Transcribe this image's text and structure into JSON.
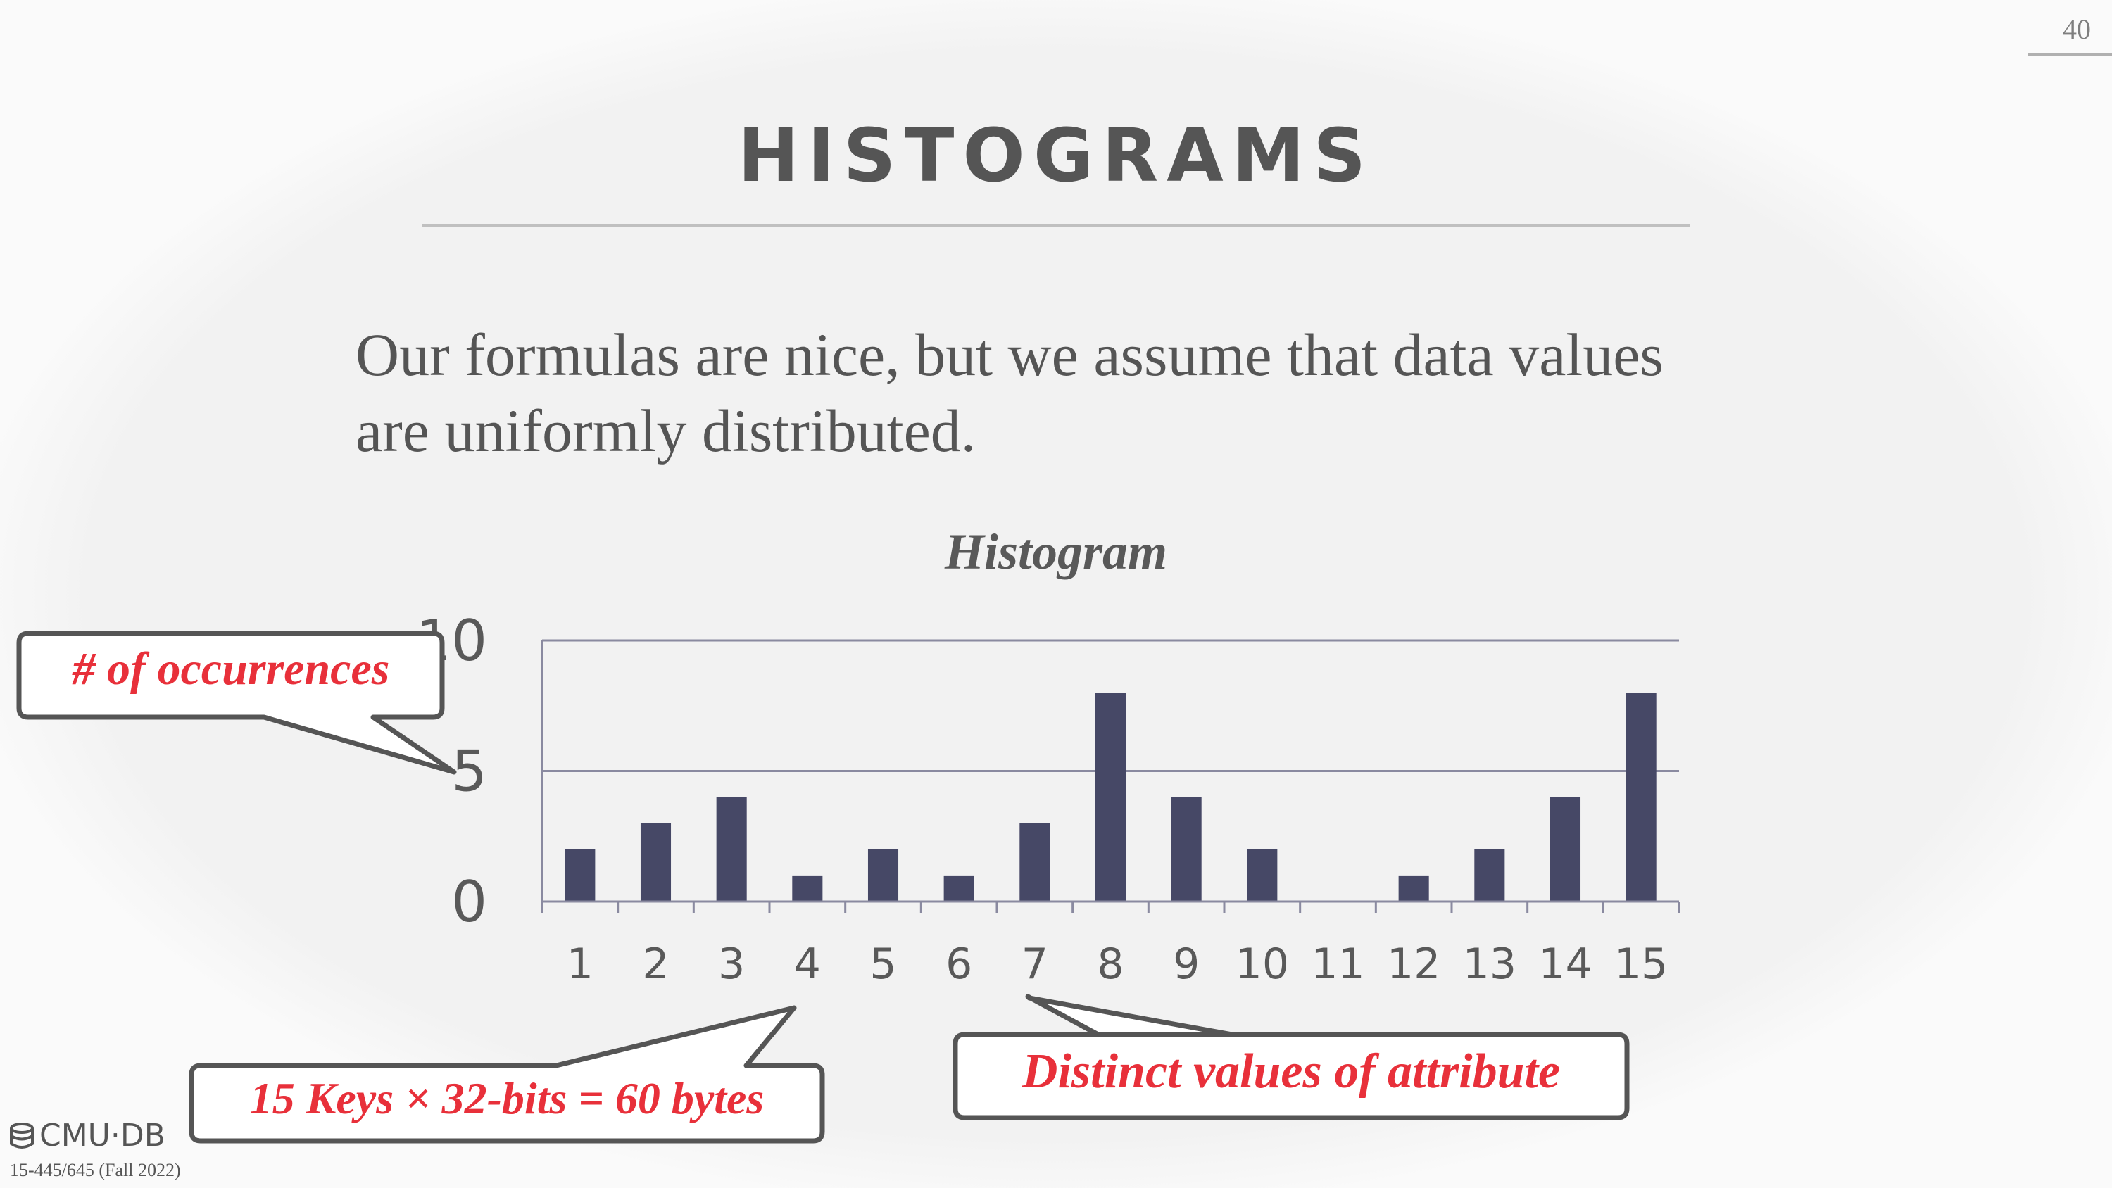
{
  "page_number": "40",
  "title": "HISTOGRAMS",
  "body_text": "Our formulas are nice, but we assume that data values are uniformly distributed.",
  "chart_data": {
    "type": "bar",
    "title": "Histogram",
    "categories": [
      "1",
      "2",
      "3",
      "4",
      "5",
      "6",
      "7",
      "8",
      "9",
      "10",
      "11",
      "12",
      "13",
      "14",
      "15"
    ],
    "values": [
      2,
      3,
      4,
      1,
      2,
      1,
      3,
      8,
      4,
      2,
      0,
      1,
      2,
      4,
      8
    ],
    "ylim": [
      0,
      10
    ],
    "yticks": [
      "0",
      "5",
      "10"
    ],
    "grid": true,
    "bar_color": "#464866"
  },
  "callouts": {
    "occurrences": "# of occurrences",
    "distinct_values": "Distinct values of attribute",
    "storage": "15 Keys × 32-bits = 60 bytes"
  },
  "colors": {
    "accent": "#e8303a",
    "text": "#555555"
  },
  "footer": {
    "logo_text": "CMU·DB",
    "logo_icon": "database-icon",
    "course": "15-445/645 (Fall 2022)"
  }
}
